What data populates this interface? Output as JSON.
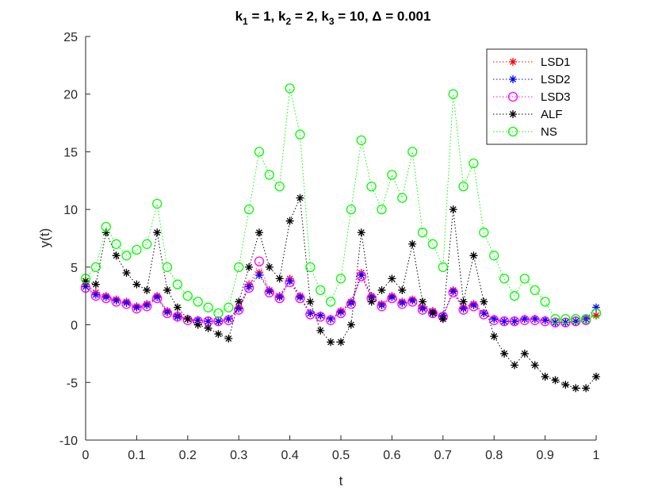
{
  "chart_data": {
    "type": "line",
    "title": {
      "segments": [
        {
          "text": "k"
        },
        {
          "text": "1",
          "sub": true
        },
        {
          "text": " = 1, k"
        },
        {
          "text": "2",
          "sub": true
        },
        {
          "text": " = 2, k"
        },
        {
          "text": "3",
          "sub": true
        },
        {
          "text": " = 10, Δ = 0.001"
        }
      ]
    },
    "xlabel": "t",
    "ylabel": "y(t)",
    "xlim": [
      0,
      1
    ],
    "ylim": [
      -10,
      25
    ],
    "xticks": [
      0,
      0.1,
      0.2,
      0.3,
      0.4,
      0.5,
      0.6,
      0.7,
      0.8,
      0.9,
      1
    ],
    "xtick_labels": [
      "0",
      "0.1",
      "0.2",
      "0.3",
      "0.4",
      "0.5",
      "0.6",
      "0.7",
      "0.8",
      "0.9",
      "1"
    ],
    "yticks": [
      -10,
      -5,
      0,
      5,
      10,
      15,
      20,
      25
    ],
    "ytick_labels": [
      "-10",
      "-5",
      "0",
      "5",
      "10",
      "15",
      "20",
      "25"
    ],
    "grid": false,
    "legend_position": "top-right",
    "series": [
      {
        "name": "LSD1",
        "color": "#ff0000",
        "marker": "star",
        "linestyle": "dotted",
        "x": [
          0,
          0.02,
          0.04,
          0.06,
          0.08,
          0.1,
          0.12,
          0.14,
          0.16,
          0.18,
          0.2,
          0.22,
          0.24,
          0.26,
          0.28,
          0.3,
          0.32,
          0.34,
          0.36,
          0.38,
          0.4,
          0.42,
          0.44,
          0.46,
          0.48,
          0.5,
          0.52,
          0.54,
          0.56,
          0.58,
          0.6,
          0.62,
          0.64,
          0.66,
          0.68,
          0.7,
          0.72,
          0.74,
          0.76,
          0.78,
          0.8,
          0.82,
          0.84,
          0.86,
          0.88,
          0.9,
          0.92,
          0.94,
          0.96,
          0.98,
          1
        ],
        "y": [
          3.5,
          2.8,
          2.5,
          2.2,
          2,
          1.6,
          1.8,
          2.5,
          1.2,
          0.8,
          0.5,
          0.4,
          0.3,
          0.3,
          0.5,
          1.5,
          3.5,
          4.5,
          3,
          2.5,
          4,
          2.5,
          1,
          0.8,
          0.5,
          1.2,
          2,
          4.5,
          2.5,
          1.8,
          2.5,
          2,
          2.2,
          1.5,
          1.2,
          0.8,
          3,
          1.5,
          1.8,
          1,
          0.5,
          0.3,
          0.3,
          0.5,
          0.5,
          0.4,
          0.2,
          0.2,
          0.3,
          0.5,
          0.8
        ]
      },
      {
        "name": "LSD2",
        "color": "#0000ff",
        "marker": "star",
        "linestyle": "dotted",
        "x": [
          0,
          0.02,
          0.04,
          0.06,
          0.08,
          0.1,
          0.12,
          0.14,
          0.16,
          0.18,
          0.2,
          0.22,
          0.24,
          0.26,
          0.28,
          0.3,
          0.32,
          0.34,
          0.36,
          0.38,
          0.4,
          0.42,
          0.44,
          0.46,
          0.48,
          0.5,
          0.52,
          0.54,
          0.56,
          0.58,
          0.6,
          0.62,
          0.64,
          0.66,
          0.68,
          0.7,
          0.72,
          0.74,
          0.76,
          0.78,
          0.8,
          0.82,
          0.84,
          0.86,
          0.88,
          0.9,
          0.92,
          0.94,
          0.96,
          0.98,
          1
        ],
        "y": [
          3.3,
          2.6,
          2.4,
          2.1,
          1.9,
          1.5,
          1.7,
          2.4,
          1.1,
          0.7,
          0.5,
          0.4,
          0.3,
          0.3,
          0.5,
          1.4,
          3.3,
          4.3,
          2.9,
          2.4,
          3.8,
          2.4,
          1,
          0.8,
          0.5,
          1.1,
          1.9,
          4.3,
          2.4,
          1.7,
          2.4,
          1.9,
          2.1,
          1.4,
          1.1,
          0.8,
          2.9,
          1.4,
          1.7,
          1,
          0.5,
          0.3,
          0.3,
          0.5,
          0.5,
          0.4,
          0.2,
          0.2,
          0.3,
          0.5,
          1.5
        ]
      },
      {
        "name": "LSD3",
        "color": "#ff00ff",
        "marker": "circle",
        "linestyle": "dotted",
        "x": [
          0,
          0.02,
          0.04,
          0.06,
          0.08,
          0.1,
          0.12,
          0.14,
          0.16,
          0.18,
          0.2,
          0.22,
          0.24,
          0.26,
          0.28,
          0.3,
          0.32,
          0.34,
          0.36,
          0.38,
          0.4,
          0.42,
          0.44,
          0.46,
          0.48,
          0.5,
          0.52,
          0.54,
          0.56,
          0.58,
          0.6,
          0.62,
          0.64,
          0.66,
          0.68,
          0.7,
          0.72,
          0.74,
          0.76,
          0.78,
          0.8,
          0.82,
          0.84,
          0.86,
          0.88,
          0.9,
          0.92,
          0.94,
          0.96,
          0.98,
          1
        ],
        "y": [
          3.2,
          2.5,
          2.3,
          2,
          1.8,
          1.4,
          1.6,
          2.3,
          1,
          0.7,
          0.4,
          0.3,
          0.3,
          0.3,
          0.4,
          1.3,
          3.2,
          5.5,
          2.8,
          2.3,
          3.7,
          2.3,
          0.9,
          0.7,
          0.4,
          1,
          1.8,
          4.2,
          2.3,
          1.6,
          2.3,
          1.8,
          2,
          1.3,
          1,
          0.7,
          2.8,
          1.3,
          1.6,
          0.9,
          0.4,
          0.3,
          0.3,
          0.4,
          0.4,
          0.3,
          0.2,
          0.2,
          0.3,
          0.4,
          1
        ]
      },
      {
        "name": "ALF",
        "color": "#000000",
        "marker": "star",
        "linestyle": "dotted",
        "x": [
          0,
          0.02,
          0.04,
          0.06,
          0.08,
          0.1,
          0.12,
          0.14,
          0.16,
          0.18,
          0.2,
          0.22,
          0.24,
          0.26,
          0.28,
          0.3,
          0.32,
          0.34,
          0.36,
          0.38,
          0.4,
          0.42,
          0.44,
          0.46,
          0.48,
          0.5,
          0.52,
          0.54,
          0.56,
          0.58,
          0.6,
          0.62,
          0.64,
          0.66,
          0.68,
          0.7,
          0.72,
          0.74,
          0.76,
          0.78,
          0.8,
          0.82,
          0.84,
          0.86,
          0.88,
          0.9,
          0.92,
          0.94,
          0.96,
          0.98,
          1
        ],
        "y": [
          3.8,
          3.5,
          8,
          6,
          4.5,
          3.5,
          3,
          8,
          3,
          1.5,
          0.5,
          0,
          -0.3,
          -0.8,
          -1.2,
          2,
          5,
          8,
          5,
          4,
          9,
          11,
          2,
          -0.5,
          -1.5,
          -1.5,
          0,
          8,
          2,
          3,
          4,
          3,
          7,
          2,
          1,
          0.5,
          10,
          2,
          6,
          2,
          -1,
          -2.5,
          -3.5,
          -2.5,
          -3.5,
          -4.5,
          -4.8,
          -5.2,
          -5.5,
          -5.5,
          -4.5
        ]
      },
      {
        "name": "NS",
        "color": "#00ff00",
        "marker": "circle",
        "linestyle": "dotted",
        "x": [
          0,
          0.02,
          0.04,
          0.06,
          0.08,
          0.1,
          0.12,
          0.14,
          0.16,
          0.18,
          0.2,
          0.22,
          0.24,
          0.26,
          0.28,
          0.3,
          0.32,
          0.34,
          0.36,
          0.38,
          0.4,
          0.42,
          0.44,
          0.46,
          0.48,
          0.5,
          0.52,
          0.54,
          0.56,
          0.58,
          0.6,
          0.62,
          0.64,
          0.66,
          0.68,
          0.7,
          0.72,
          0.74,
          0.76,
          0.78,
          0.8,
          0.82,
          0.84,
          0.86,
          0.88,
          0.9,
          0.92,
          0.94,
          0.96,
          0.98,
          1
        ],
        "y": [
          4,
          5,
          8.5,
          7,
          6,
          6.5,
          7,
          10.5,
          5,
          3.5,
          2.5,
          2,
          1.5,
          1,
          1.5,
          5,
          10,
          15,
          13,
          12,
          20.5,
          16.5,
          5,
          3,
          2,
          4,
          10,
          16,
          12,
          10,
          13,
          11,
          15,
          8,
          7,
          5,
          20,
          12,
          14,
          8,
          6,
          4,
          2.5,
          4,
          3,
          2,
          0.5,
          0.5,
          0.5,
          0.5,
          1
        ]
      }
    ]
  }
}
